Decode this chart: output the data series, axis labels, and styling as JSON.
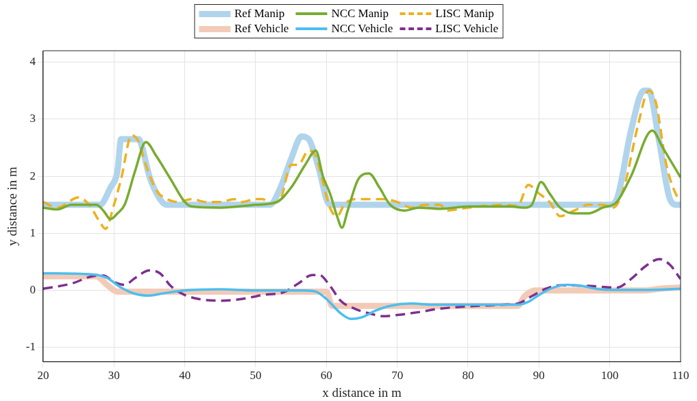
{
  "chart_data": {
    "type": "line",
    "xlabel": "x distance in m",
    "ylabel": "y distance in m",
    "xlim": [
      20,
      110
    ],
    "xticks": [
      20,
      30,
      40,
      50,
      60,
      70,
      80,
      90,
      100,
      110
    ],
    "ylim": [
      -1.25,
      4.2
    ],
    "yticks": [
      -1,
      0,
      1,
      2,
      3,
      4
    ],
    "grid": true,
    "legend": "top",
    "marker": "none",
    "series": [
      {
        "name": "Ref Manip",
        "color": "#b0d4ec",
        "line_style": "solid",
        "x": [
          20,
          28,
          29.5,
          30.5,
          31,
          33.5,
          34,
          35,
          36.5,
          37.5,
          52,
          53.5,
          55,
          56.5,
          57.5,
          59,
          60,
          60.5,
          100,
          101,
          103,
          104.8,
          105.5,
          107,
          108.5,
          109.5,
          110
        ],
        "values": [
          1.5,
          1.5,
          1.8,
          2.1,
          2.65,
          2.65,
          2.5,
          2.0,
          1.6,
          1.5,
          1.5,
          1.8,
          2.3,
          2.7,
          2.65,
          2.1,
          1.6,
          1.5,
          1.5,
          1.6,
          2.8,
          3.5,
          3.5,
          2.6,
          1.6,
          1.5,
          1.5
        ]
      },
      {
        "name": "NCC Manip",
        "color": "#77ac30",
        "line_style": "solid",
        "x": [
          20,
          22,
          24,
          27.5,
          28.5,
          29.5,
          30.5,
          31.5,
          33,
          34.5,
          36,
          38,
          40,
          41,
          45,
          50,
          53,
          55,
          57,
          58.5,
          59.5,
          60.5,
          61.5,
          62.2,
          63,
          64.5,
          66,
          67.5,
          69,
          71,
          73,
          76,
          80,
          86,
          88,
          89,
          90.3,
          91.5,
          93,
          95,
          97,
          99,
          101,
          103,
          106,
          107.5,
          110
        ],
        "values": [
          1.45,
          1.42,
          1.5,
          1.5,
          1.4,
          1.25,
          1.35,
          1.5,
          2.1,
          2.6,
          2.35,
          1.95,
          1.55,
          1.47,
          1.45,
          1.5,
          1.55,
          1.8,
          2.2,
          2.45,
          2.0,
          1.7,
          1.3,
          1.1,
          1.4,
          1.95,
          2.05,
          1.8,
          1.5,
          1.4,
          1.45,
          1.43,
          1.47,
          1.47,
          1.45,
          1.5,
          1.9,
          1.7,
          1.45,
          1.35,
          1.35,
          1.45,
          1.55,
          2.0,
          2.8,
          2.5,
          1.98
        ]
      },
      {
        "name": "LISC Manip",
        "color": "#edb120",
        "line_style": "dashed",
        "x": [
          20,
          22,
          25,
          26.5,
          28,
          28.8,
          30,
          31,
          32.5,
          33.5,
          34.5,
          36,
          37.5,
          39,
          41,
          43,
          45,
          47,
          48,
          50,
          51,
          52,
          53.5,
          55,
          56,
          57.5,
          58.5,
          59.5,
          60.5,
          61.5,
          62.5,
          64,
          66,
          68,
          70,
          72,
          74,
          76,
          77,
          80,
          85,
          87,
          88.5,
          90,
          91.5,
          93,
          95,
          97,
          99,
          100.5,
          102,
          104,
          105.5,
          106.5,
          108,
          109.5,
          110
        ],
        "values": [
          1.55,
          1.45,
          1.63,
          1.5,
          1.2,
          1.08,
          1.5,
          1.95,
          2.72,
          2.6,
          2.2,
          1.75,
          1.6,
          1.55,
          1.6,
          1.55,
          1.55,
          1.6,
          1.55,
          1.6,
          1.6,
          1.52,
          1.6,
          2.2,
          2.2,
          2.45,
          2.35,
          1.9,
          1.45,
          1.3,
          1.5,
          1.6,
          1.6,
          1.6,
          1.55,
          1.45,
          1.5,
          1.5,
          1.4,
          1.45,
          1.5,
          1.48,
          1.85,
          1.7,
          1.55,
          1.3,
          1.4,
          1.5,
          1.5,
          1.45,
          1.8,
          2.9,
          3.5,
          3.3,
          2.2,
          1.65,
          1.6
        ]
      },
      {
        "name": "Ref Vehicle",
        "color": "#f2cbb8",
        "line_style": "solid",
        "x": [
          20,
          27.5,
          29,
          30.5,
          60,
          60.8,
          87,
          88,
          89.5,
          105,
          107,
          110
        ],
        "values": [
          0.25,
          0.25,
          0.1,
          -0.02,
          -0.02,
          -0.27,
          -0.27,
          -0.1,
          0.0,
          0.0,
          0.03,
          0.05
        ]
      },
      {
        "name": "NCC Vehicle",
        "color": "#4dbeee",
        "line_style": "solid",
        "x": [
          20,
          27,
          29,
          31,
          33,
          35,
          37,
          40,
          45,
          50,
          57,
          58.5,
          60,
          62,
          63.5,
          65,
          67,
          69,
          72,
          75,
          80,
          87,
          88.5,
          90,
          92,
          94,
          96,
          98,
          100,
          105,
          110
        ],
        "values": [
          0.3,
          0.28,
          0.22,
          0.05,
          -0.06,
          -0.09,
          -0.05,
          0.0,
          0.02,
          0.0,
          0.0,
          -0.02,
          -0.15,
          -0.4,
          -0.5,
          -0.47,
          -0.35,
          -0.27,
          -0.23,
          -0.25,
          -0.25,
          -0.25,
          -0.2,
          -0.08,
          0.05,
          0.1,
          0.08,
          0.03,
          0.01,
          0.01,
          0.03
        ]
      },
      {
        "name": "LISC Vehicle",
        "color": "#7e2f8e",
        "line_style": "dashed",
        "x": [
          20,
          24,
          27,
          28.5,
          30,
          31.5,
          33,
          35,
          36.5,
          38,
          40,
          42,
          45,
          48,
          51,
          54,
          56,
          58,
          59,
          60.5,
          62,
          64,
          66,
          68,
          70,
          73,
          76,
          80,
          85,
          87,
          89,
          91,
          93,
          97,
          101,
          103,
          105,
          107,
          108.5,
          110
        ],
        "values": [
          0.03,
          0.12,
          0.25,
          0.26,
          0.15,
          0.1,
          0.22,
          0.35,
          0.3,
          0.08,
          -0.08,
          -0.15,
          -0.18,
          -0.15,
          -0.08,
          -0.03,
          0.12,
          0.27,
          0.27,
          0.08,
          -0.18,
          -0.32,
          -0.4,
          -0.45,
          -0.43,
          -0.38,
          -0.32,
          -0.28,
          -0.25,
          -0.23,
          -0.1,
          0.03,
          0.09,
          0.08,
          0.05,
          0.2,
          0.42,
          0.55,
          0.45,
          0.2
        ]
      }
    ]
  }
}
